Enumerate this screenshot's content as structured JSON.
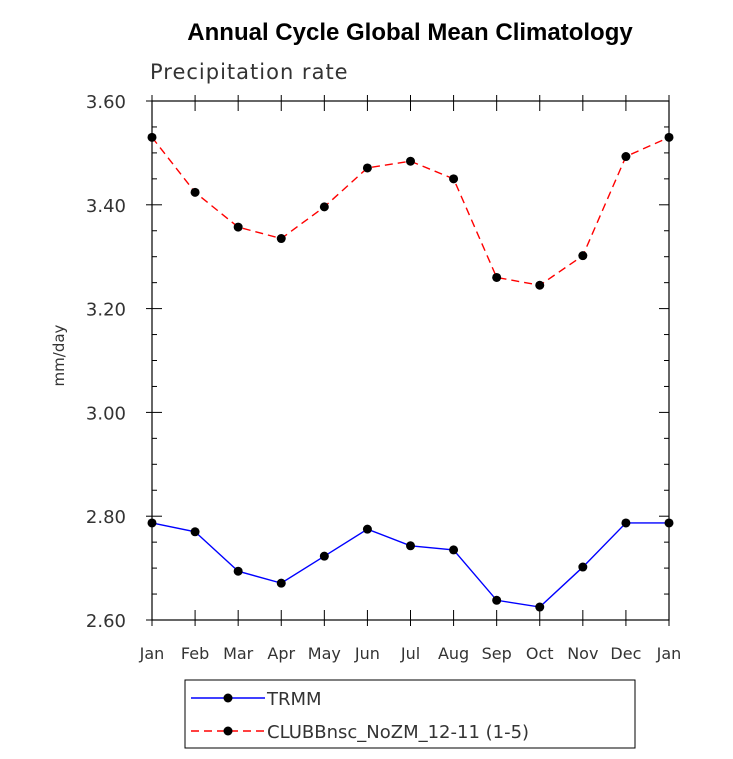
{
  "chart_data": {
    "type": "line",
    "title": "Annual Cycle Global Mean Climatology",
    "subtitle": "Precipitation rate",
    "xlabel": "",
    "ylabel": "mm/day",
    "ylim": [
      2.6,
      3.6
    ],
    "yticks": [
      "2.60",
      "2.80",
      "3.00",
      "3.20",
      "3.40",
      "3.60"
    ],
    "ytick_values": [
      2.6,
      2.8,
      3.0,
      3.2,
      3.4,
      3.6
    ],
    "categories": [
      "Jan",
      "Feb",
      "Mar",
      "Apr",
      "May",
      "Jun",
      "Jul",
      "Aug",
      "Sep",
      "Oct",
      "Nov",
      "Dec",
      "Jan"
    ],
    "grid": false,
    "legend_position": "bottom",
    "series": [
      {
        "name": "TRMM",
        "color": "#0000ff",
        "line_style": "solid",
        "marker": "filled-circle",
        "values": [
          2.787,
          2.77,
          2.694,
          2.671,
          2.723,
          2.775,
          2.743,
          2.735,
          2.638,
          2.625,
          2.702,
          2.787,
          2.787
        ]
      },
      {
        "name": "CLUBBnsc_NoZM_12-11 (1-5)",
        "color": "#ff0000",
        "line_style": "dashed",
        "marker": "filled-circle",
        "values": [
          3.53,
          3.424,
          3.357,
          3.335,
          3.396,
          3.471,
          3.484,
          3.45,
          3.26,
          3.245,
          3.302,
          3.493,
          3.53
        ]
      }
    ]
  }
}
